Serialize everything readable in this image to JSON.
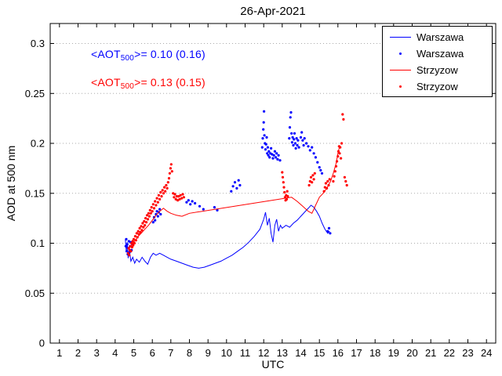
{
  "chart_data": {
    "type": "line+scatter",
    "title": "26-Apr-2021",
    "xlabel": "UTC",
    "ylabel": "AOD at 500 nm",
    "xlim": [
      0.5,
      24.5
    ],
    "ylim": [
      0,
      0.32
    ],
    "xticks": [
      1,
      2,
      3,
      4,
      5,
      6,
      7,
      8,
      9,
      10,
      11,
      12,
      13,
      14,
      15,
      16,
      17,
      18,
      19,
      20,
      21,
      22,
      23,
      24
    ],
    "yticks": [
      0,
      0.05,
      0.1,
      0.15,
      0.2,
      0.25,
      0.3
    ],
    "ytick_labels": [
      "0",
      "0.05",
      "0.1",
      "0.15",
      "0.2",
      "0.25",
      "0.3"
    ],
    "grid": "horizontal-dotted",
    "legend_position": "top-right",
    "annotations": [
      {
        "pre": "<AOT",
        "sub": "500",
        "post": ">= 0.10 (0.16)",
        "color": "#0000ff"
      },
      {
        "pre": "<AOT",
        "sub": "500",
        "post": ">= 0.13 (0.15)",
        "color": "#ff0000"
      }
    ],
    "series": [
      {
        "name": "Warszawa",
        "style": "line",
        "color": "#0000ff",
        "points": [
          [
            4.55,
            0.104
          ],
          [
            4.6,
            0.092
          ],
          [
            4.65,
            0.101
          ],
          [
            4.7,
            0.085
          ],
          [
            4.75,
            0.094
          ],
          [
            4.85,
            0.082
          ],
          [
            4.95,
            0.086
          ],
          [
            5.05,
            0.08
          ],
          [
            5.15,
            0.084
          ],
          [
            5.3,
            0.081
          ],
          [
            5.45,
            0.086
          ],
          [
            5.6,
            0.082
          ],
          [
            5.75,
            0.079
          ],
          [
            5.9,
            0.086
          ],
          [
            6.05,
            0.09
          ],
          [
            6.2,
            0.088
          ],
          [
            6.4,
            0.09
          ],
          [
            6.6,
            0.088
          ],
          [
            6.8,
            0.086
          ],
          [
            7.0,
            0.084
          ],
          [
            7.3,
            0.082
          ],
          [
            7.6,
            0.08
          ],
          [
            7.9,
            0.078
          ],
          [
            8.2,
            0.076
          ],
          [
            8.5,
            0.075
          ],
          [
            8.8,
            0.076
          ],
          [
            9.1,
            0.078
          ],
          [
            9.4,
            0.08
          ],
          [
            9.7,
            0.082
          ],
          [
            10.0,
            0.085
          ],
          [
            10.3,
            0.088
          ],
          [
            10.6,
            0.092
          ],
          [
            10.9,
            0.096
          ],
          [
            11.2,
            0.101
          ],
          [
            11.5,
            0.107
          ],
          [
            11.8,
            0.114
          ],
          [
            12.0,
            0.124
          ],
          [
            12.1,
            0.131
          ],
          [
            12.2,
            0.118
          ],
          [
            12.3,
            0.125
          ],
          [
            12.4,
            0.11
          ],
          [
            12.5,
            0.101
          ],
          [
            12.6,
            0.118
          ],
          [
            12.7,
            0.124
          ],
          [
            12.8,
            0.112
          ],
          [
            12.9,
            0.118
          ],
          [
            13.0,
            0.115
          ],
          [
            13.2,
            0.118
          ],
          [
            13.4,
            0.116
          ],
          [
            13.6,
            0.12
          ],
          [
            13.8,
            0.123
          ],
          [
            14.0,
            0.127
          ],
          [
            14.2,
            0.131
          ],
          [
            14.4,
            0.135
          ],
          [
            14.55,
            0.138
          ],
          [
            14.7,
            0.136
          ],
          [
            14.85,
            0.132
          ],
          [
            15.0,
            0.127
          ],
          [
            15.15,
            0.12
          ],
          [
            15.3,
            0.114
          ],
          [
            15.45,
            0.11
          ],
          [
            15.55,
            0.112
          ]
        ]
      },
      {
        "name": "Warszawa",
        "style": "scatter",
        "color": "#0000ff",
        "points": [
          [
            4.57,
            0.097
          ],
          [
            4.6,
            0.104
          ],
          [
            4.62,
            0.092
          ],
          [
            4.65,
            0.099
          ],
          [
            4.68,
            0.089
          ],
          [
            4.71,
            0.095
          ],
          [
            4.74,
            0.102
          ],
          [
            4.77,
            0.091
          ],
          [
            4.8,
            0.097
          ],
          [
            4.84,
            0.101
          ],
          [
            4.88,
            0.093
          ],
          [
            4.92,
            0.099
          ],
          [
            6.05,
            0.121
          ],
          [
            6.1,
            0.126
          ],
          [
            6.15,
            0.123
          ],
          [
            6.2,
            0.129
          ],
          [
            6.25,
            0.132
          ],
          [
            6.3,
            0.127
          ],
          [
            6.35,
            0.131
          ],
          [
            6.4,
            0.134
          ],
          [
            6.45,
            0.129
          ],
          [
            7.85,
            0.141
          ],
          [
            7.95,
            0.143
          ],
          [
            8.05,
            0.139
          ],
          [
            8.15,
            0.142
          ],
          [
            8.3,
            0.14
          ],
          [
            8.55,
            0.137
          ],
          [
            8.75,
            0.134
          ],
          [
            9.35,
            0.136
          ],
          [
            9.5,
            0.133
          ],
          [
            10.25,
            0.152
          ],
          [
            10.35,
            0.157
          ],
          [
            10.45,
            0.161
          ],
          [
            10.55,
            0.155
          ],
          [
            10.65,
            0.163
          ],
          [
            10.72,
            0.158
          ],
          [
            11.92,
            0.196
          ],
          [
            11.95,
            0.205
          ],
          [
            11.98,
            0.214
          ],
          [
            12.0,
            0.221
          ],
          [
            12.02,
            0.232
          ],
          [
            12.04,
            0.208
          ],
          [
            12.07,
            0.2
          ],
          [
            12.1,
            0.194
          ],
          [
            12.13,
            0.199
          ],
          [
            12.16,
            0.206
          ],
          [
            12.19,
            0.19
          ],
          [
            12.22,
            0.196
          ],
          [
            12.25,
            0.188
          ],
          [
            12.28,
            0.192
          ],
          [
            12.32,
            0.186
          ],
          [
            12.36,
            0.19
          ],
          [
            12.4,
            0.195
          ],
          [
            12.45,
            0.189
          ],
          [
            12.5,
            0.185
          ],
          [
            12.55,
            0.188
          ],
          [
            12.6,
            0.192
          ],
          [
            12.65,
            0.186
          ],
          [
            12.7,
            0.19
          ],
          [
            12.75,
            0.184
          ],
          [
            12.8,
            0.188
          ],
          [
            12.88,
            0.183
          ],
          [
            13.38,
            0.205
          ],
          [
            13.41,
            0.216
          ],
          [
            13.44,
            0.226
          ],
          [
            13.47,
            0.231
          ],
          [
            13.5,
            0.21
          ],
          [
            13.53,
            0.201
          ],
          [
            13.56,
            0.206
          ],
          [
            13.6,
            0.198
          ],
          [
            13.63,
            0.204
          ],
          [
            13.66,
            0.21
          ],
          [
            13.7,
            0.2
          ],
          [
            13.73,
            0.195
          ],
          [
            13.77,
            0.205
          ],
          [
            13.81,
            0.198
          ],
          [
            13.85,
            0.203
          ],
          [
            13.9,
            0.196
          ],
          [
            14.0,
            0.206
          ],
          [
            14.05,
            0.211
          ],
          [
            14.1,
            0.203
          ],
          [
            14.15,
            0.198
          ],
          [
            14.2,
            0.205
          ],
          [
            14.3,
            0.2
          ],
          [
            14.4,
            0.197
          ],
          [
            14.5,
            0.193
          ],
          [
            14.6,
            0.196
          ],
          [
            14.7,
            0.19
          ],
          [
            14.8,
            0.186
          ],
          [
            14.9,
            0.181
          ],
          [
            15.0,
            0.176
          ],
          [
            15.07,
            0.173
          ],
          [
            15.14,
            0.17
          ],
          [
            15.45,
            0.112
          ],
          [
            15.52,
            0.115
          ],
          [
            15.58,
            0.11
          ]
        ]
      },
      {
        "name": "Strzyzow",
        "style": "line",
        "color": "#ff0000",
        "points": [
          [
            4.7,
            0.094
          ],
          [
            4.85,
            0.097
          ],
          [
            5.0,
            0.101
          ],
          [
            5.2,
            0.106
          ],
          [
            5.4,
            0.11
          ],
          [
            5.6,
            0.114
          ],
          [
            5.8,
            0.118
          ],
          [
            6.0,
            0.123
          ],
          [
            6.2,
            0.128
          ],
          [
            6.4,
            0.132
          ],
          [
            6.6,
            0.135
          ],
          [
            6.8,
            0.132
          ],
          [
            7.0,
            0.13
          ],
          [
            7.3,
            0.128
          ],
          [
            7.6,
            0.127
          ],
          [
            8.0,
            0.13
          ],
          [
            13.5,
            0.146
          ],
          [
            13.8,
            0.142
          ],
          [
            14.1,
            0.137
          ],
          [
            14.4,
            0.132
          ],
          [
            14.6,
            0.13
          ],
          [
            14.8,
            0.138
          ],
          [
            15.0,
            0.146
          ],
          [
            15.2,
            0.15
          ],
          [
            15.4,
            0.155
          ],
          [
            15.6,
            0.162
          ],
          [
            15.75,
            0.17
          ],
          [
            15.9,
            0.18
          ],
          [
            16.0,
            0.19
          ],
          [
            16.1,
            0.198
          ]
        ]
      },
      {
        "name": "Strzyzow",
        "style": "scatter",
        "color": "#ff0000",
        "points": [
          [
            4.7,
            0.09
          ],
          [
            4.73,
            0.095
          ],
          [
            4.76,
            0.088
          ],
          [
            4.79,
            0.093
          ],
          [
            4.82,
            0.097
          ],
          [
            4.85,
            0.092
          ],
          [
            4.88,
            0.1
          ],
          [
            4.91,
            0.096
          ],
          [
            4.94,
            0.102
          ],
          [
            4.97,
            0.098
          ],
          [
            5.0,
            0.104
          ],
          [
            5.04,
            0.1
          ],
          [
            5.08,
            0.107
          ],
          [
            5.12,
            0.103
          ],
          [
            5.16,
            0.11
          ],
          [
            5.2,
            0.106
          ],
          [
            5.24,
            0.112
          ],
          [
            5.28,
            0.109
          ],
          [
            5.32,
            0.115
          ],
          [
            5.36,
            0.111
          ],
          [
            5.4,
            0.117
          ],
          [
            5.44,
            0.113
          ],
          [
            5.48,
            0.12
          ],
          [
            5.52,
            0.116
          ],
          [
            5.56,
            0.122
          ],
          [
            5.6,
            0.118
          ],
          [
            5.64,
            0.125
          ],
          [
            5.68,
            0.121
          ],
          [
            5.72,
            0.128
          ],
          [
            5.76,
            0.124
          ],
          [
            5.8,
            0.13
          ],
          [
            5.84,
            0.127
          ],
          [
            5.88,
            0.133
          ],
          [
            5.92,
            0.13
          ],
          [
            5.96,
            0.136
          ],
          [
            6.0,
            0.132
          ],
          [
            6.05,
            0.139
          ],
          [
            6.1,
            0.135
          ],
          [
            6.15,
            0.142
          ],
          [
            6.2,
            0.138
          ],
          [
            6.25,
            0.145
          ],
          [
            6.3,
            0.141
          ],
          [
            6.35,
            0.148
          ],
          [
            6.4,
            0.144
          ],
          [
            6.45,
            0.151
          ],
          [
            6.5,
            0.147
          ],
          [
            6.55,
            0.153
          ],
          [
            6.6,
            0.15
          ],
          [
            6.65,
            0.156
          ],
          [
            6.7,
            0.152
          ],
          [
            6.75,
            0.158
          ],
          [
            6.8,
            0.155
          ],
          [
            6.85,
            0.161
          ],
          [
            6.9,
            0.165
          ],
          [
            6.94,
            0.17
          ],
          [
            6.98,
            0.175
          ],
          [
            7.02,
            0.179
          ],
          [
            7.06,
            0.172
          ],
          [
            7.12,
            0.15
          ],
          [
            7.17,
            0.146
          ],
          [
            7.22,
            0.149
          ],
          [
            7.27,
            0.144
          ],
          [
            7.32,
            0.147
          ],
          [
            7.37,
            0.143
          ],
          [
            7.42,
            0.147
          ],
          [
            7.47,
            0.144
          ],
          [
            7.52,
            0.148
          ],
          [
            7.58,
            0.145
          ],
          [
            7.64,
            0.149
          ],
          [
            7.7,
            0.146
          ],
          [
            13.0,
            0.171
          ],
          [
            13.03,
            0.166
          ],
          [
            13.06,
            0.161
          ],
          [
            13.09,
            0.156
          ],
          [
            13.12,
            0.151
          ],
          [
            13.15,
            0.146
          ],
          [
            13.18,
            0.143
          ],
          [
            13.21,
            0.148
          ],
          [
            13.24,
            0.144
          ],
          [
            13.27,
            0.152
          ],
          [
            13.3,
            0.147
          ],
          [
            14.45,
            0.158
          ],
          [
            14.5,
            0.162
          ],
          [
            14.55,
            0.166
          ],
          [
            14.6,
            0.161
          ],
          [
            14.65,
            0.168
          ],
          [
            14.7,
            0.164
          ],
          [
            14.75,
            0.17
          ],
          [
            15.25,
            0.152
          ],
          [
            15.3,
            0.156
          ],
          [
            15.35,
            0.16
          ],
          [
            15.4,
            0.155
          ],
          [
            15.45,
            0.162
          ],
          [
            15.5,
            0.158
          ],
          [
            15.55,
            0.164
          ],
          [
            15.75,
            0.162
          ],
          [
            15.8,
            0.167
          ],
          [
            15.85,
            0.172
          ],
          [
            15.9,
            0.177
          ],
          [
            15.95,
            0.182
          ],
          [
            16.0,
            0.187
          ],
          [
            16.03,
            0.192
          ],
          [
            16.06,
            0.197
          ],
          [
            16.09,
            0.19
          ],
          [
            16.12,
            0.196
          ],
          [
            16.16,
            0.185
          ],
          [
            16.2,
            0.2
          ],
          [
            16.25,
            0.229
          ],
          [
            16.3,
            0.224
          ],
          [
            16.36,
            0.166
          ],
          [
            16.42,
            0.162
          ],
          [
            16.48,
            0.158
          ]
        ]
      }
    ]
  }
}
